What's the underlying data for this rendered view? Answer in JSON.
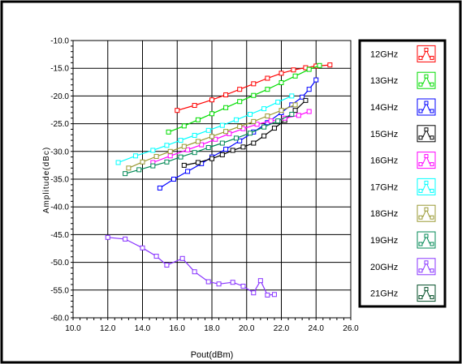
{
  "chart_data": {
    "type": "line",
    "xlabel": "Pout(dBm)",
    "ylabel": "Amplitude(dBc)",
    "xlim": [
      10.0,
      26.0
    ],
    "ylim": [
      -60.0,
      -10.0
    ],
    "x_ticks": [
      "10.0",
      "12.0",
      "14.0",
      "16.0",
      "18.0",
      "20.0",
      "22.0",
      "24.0",
      "26.0"
    ],
    "y_ticks": [
      "-10.0",
      "-15.0",
      "-20.0",
      "-25.0",
      "-30.0",
      "-35.0",
      "-40.0",
      "-45.0",
      "-50.0",
      "-55.0",
      "-60.0"
    ],
    "grid": true,
    "legend_position": "right",
    "series": [
      {
        "name": "12GHz",
        "color": "#ff0000",
        "x": [
          16.0,
          17.0,
          18.0,
          18.8,
          19.6,
          20.4,
          21.2,
          22.0,
          22.7,
          23.4,
          24.0,
          24.8
        ],
        "y": [
          -22.6,
          -21.7,
          -20.7,
          -19.8,
          -18.8,
          -17.8,
          -16.8,
          -15.9,
          -15.3,
          -14.9,
          -14.6,
          -14.4
        ]
      },
      {
        "name": "13GHz",
        "color": "#00dd00",
        "x": [
          15.5,
          16.4,
          17.2,
          18.0,
          18.8,
          19.6,
          20.4,
          21.2,
          22.0,
          22.8,
          23.6,
          24.2
        ],
        "y": [
          -26.5,
          -25.4,
          -24.3,
          -23.2,
          -22.1,
          -21.0,
          -19.9,
          -18.8,
          -17.6,
          -16.4,
          -15.2,
          -14.5
        ]
      },
      {
        "name": "14GHz",
        "color": "#0000ff",
        "x": [
          15.0,
          15.8,
          16.6,
          17.4,
          18.0,
          18.8,
          19.6,
          20.4,
          21.2,
          22.0,
          22.6,
          23.2,
          23.6,
          24.0
        ],
        "y": [
          -36.6,
          -35.0,
          -33.6,
          -32.2,
          -31.0,
          -29.6,
          -28.1,
          -26.5,
          -24.8,
          -23.0,
          -21.6,
          -20.2,
          -18.8,
          -17.1
        ]
      },
      {
        "name": "15GHz",
        "color": "#000000",
        "x": [
          16.4,
          17.2,
          18.0,
          18.6,
          19.2,
          19.8,
          20.4,
          21.0,
          21.6,
          22.2,
          22.8,
          23.4
        ],
        "y": [
          -32.5,
          -32.0,
          -31.3,
          -30.6,
          -29.8,
          -29.2,
          -28.5,
          -27.2,
          -25.8,
          -24.4,
          -22.6,
          -20.8
        ]
      },
      {
        "name": "16GHz",
        "color": "#ff00ff",
        "x": [
          14.6,
          15.6,
          16.6,
          17.4,
          18.2,
          19.0,
          19.8,
          20.6,
          21.4,
          22.2,
          23.0,
          23.6
        ],
        "y": [
          -32.0,
          -30.8,
          -29.7,
          -28.8,
          -27.8,
          -26.8,
          -25.9,
          -25.1,
          -24.5,
          -24.0,
          -23.5,
          -22.8
        ]
      },
      {
        "name": "17GHz",
        "color": "#00ffff",
        "x": [
          12.6,
          13.6,
          14.6,
          15.4,
          16.2,
          17.0,
          17.8,
          18.6,
          19.4,
          20.2,
          21.0,
          21.8,
          22.6
        ],
        "y": [
          -32.0,
          -30.8,
          -29.8,
          -28.9,
          -28.0,
          -27.1,
          -26.2,
          -25.3,
          -24.3,
          -23.3,
          -22.3,
          -21.1,
          -20.0
        ]
      },
      {
        "name": "18GHz",
        "color": "#999933",
        "x": [
          13.2,
          14.0,
          14.8,
          15.6,
          16.4,
          17.2,
          18.0,
          18.8,
          19.6,
          20.4,
          21.2,
          22.0,
          22.8
        ],
        "y": [
          -33.0,
          -31.9,
          -30.9,
          -30.0,
          -29.1,
          -28.2,
          -27.3,
          -26.4,
          -25.5,
          -24.6,
          -23.6,
          -22.6,
          -21.6
        ]
      },
      {
        "name": "19GHz",
        "color": "#008855",
        "x": [
          13.0,
          13.8,
          14.6,
          15.4,
          16.2,
          17.0,
          17.8,
          18.6,
          19.4,
          20.2,
          21.0,
          21.8,
          22.6
        ],
        "y": [
          -34.0,
          -33.3,
          -32.6,
          -31.9,
          -31.0,
          -30.2,
          -29.3,
          -28.5,
          -27.6,
          -26.7,
          -25.6,
          -24.5,
          -23.3
        ]
      },
      {
        "name": "20GHz",
        "color": "#8833ff",
        "x": [
          12.0,
          13.0,
          14.0,
          14.8,
          15.4,
          16.3,
          17.0,
          17.8,
          18.4,
          19.2,
          19.8,
          20.4,
          20.8,
          21.2,
          21.6
        ],
        "y": [
          -45.5,
          -45.8,
          -47.4,
          -48.9,
          -50.5,
          -49.3,
          -51.7,
          -53.5,
          -53.9,
          -53.6,
          -54.3,
          -55.5,
          -53.3,
          -55.9,
          -55.8
        ]
      },
      {
        "name": "21GHz",
        "color": "#004d26",
        "x": [],
        "y": []
      }
    ]
  }
}
